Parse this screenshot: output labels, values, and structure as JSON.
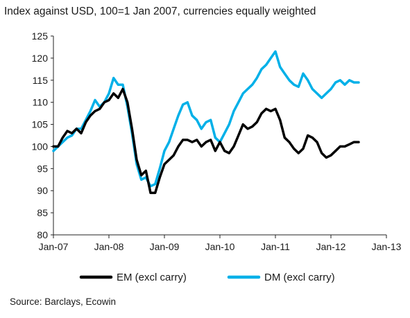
{
  "title": "Index against USD, 100=1 Jan 2007, currencies equally weighted",
  "source": "Source: Barclays, Ecowin",
  "chart_data": {
    "type": "line",
    "ylim": [
      80,
      125
    ],
    "yticks": [
      80,
      85,
      90,
      95,
      100,
      105,
      110,
      115,
      120,
      125
    ],
    "xlim": [
      0,
      72
    ],
    "xticks": [
      {
        "label": "Jan-07",
        "value": 0
      },
      {
        "label": "Jan-08",
        "value": 12
      },
      {
        "label": "Jan-09",
        "value": 24
      },
      {
        "label": "Jan-10",
        "value": 36
      },
      {
        "label": "Jan-11",
        "value": 48
      },
      {
        "label": "Jan-12",
        "value": 60
      },
      {
        "label": "Jan-13",
        "value": 72
      }
    ],
    "grid": false,
    "legend": "bottom",
    "series": [
      {
        "name": "EM (excl carry)",
        "color": "#000000",
        "points": [
          [
            0,
            100
          ],
          [
            1,
            100
          ],
          [
            2,
            102
          ],
          [
            3,
            103.5
          ],
          [
            4,
            103
          ],
          [
            5,
            104
          ],
          [
            6,
            103
          ],
          [
            7,
            105.5
          ],
          [
            8,
            107
          ],
          [
            9,
            108
          ],
          [
            10,
            108.5
          ],
          [
            11,
            110
          ],
          [
            12,
            110.5
          ],
          [
            13,
            112
          ],
          [
            14,
            111
          ],
          [
            15,
            113
          ],
          [
            16,
            110
          ],
          [
            17,
            104
          ],
          [
            18,
            97
          ],
          [
            19,
            93.5
          ],
          [
            20,
            94.5
          ],
          [
            21,
            89.5
          ],
          [
            22,
            89.5
          ],
          [
            23,
            93
          ],
          [
            24,
            96
          ],
          [
            25,
            97
          ],
          [
            26,
            98
          ],
          [
            27,
            100
          ],
          [
            28,
            101.5
          ],
          [
            29,
            101.5
          ],
          [
            30,
            101
          ],
          [
            31,
            101.5
          ],
          [
            32,
            100
          ],
          [
            33,
            101
          ],
          [
            34,
            101.5
          ],
          [
            35,
            99
          ],
          [
            36,
            101
          ],
          [
            37,
            99
          ],
          [
            38,
            98.5
          ],
          [
            39,
            100
          ],
          [
            40,
            102.5
          ],
          [
            41,
            105
          ],
          [
            42,
            104
          ],
          [
            43,
            104.5
          ],
          [
            44,
            105.5
          ],
          [
            45,
            107.5
          ],
          [
            46,
            108.5
          ],
          [
            47,
            108
          ],
          [
            48,
            108.5
          ],
          [
            49,
            106
          ],
          [
            50,
            102
          ],
          [
            51,
            101
          ],
          [
            52,
            99.5
          ],
          [
            53,
            98.5
          ],
          [
            54,
            99.5
          ],
          [
            55,
            102.5
          ],
          [
            56,
            102
          ],
          [
            57,
            101
          ],
          [
            58,
            98.5
          ],
          [
            59,
            97.5
          ],
          [
            60,
            98
          ],
          [
            61,
            99
          ],
          [
            62,
            100
          ],
          [
            63,
            100
          ],
          [
            64,
            100.5
          ],
          [
            65,
            101
          ],
          [
            66,
            101
          ]
        ]
      },
      {
        "name": "DM (excl carry)",
        "color": "#00B0E8",
        "points": [
          [
            0,
            99
          ],
          [
            1,
            100
          ],
          [
            2,
            101
          ],
          [
            3,
            102
          ],
          [
            4,
            102.5
          ],
          [
            5,
            104
          ],
          [
            6,
            104
          ],
          [
            7,
            106
          ],
          [
            8,
            108
          ],
          [
            9,
            110.5
          ],
          [
            10,
            109
          ],
          [
            11,
            110
          ],
          [
            12,
            112
          ],
          [
            13,
            115.5
          ],
          [
            14,
            114
          ],
          [
            15,
            114
          ],
          [
            16,
            109
          ],
          [
            17,
            103
          ],
          [
            18,
            96
          ],
          [
            19,
            92.5
          ],
          [
            20,
            93
          ],
          [
            21,
            91
          ],
          [
            22,
            91.5
          ],
          [
            23,
            95
          ],
          [
            24,
            99
          ],
          [
            25,
            101
          ],
          [
            26,
            104
          ],
          [
            27,
            107
          ],
          [
            28,
            109.5
          ],
          [
            29,
            110
          ],
          [
            30,
            107
          ],
          [
            31,
            106
          ],
          [
            32,
            104
          ],
          [
            33,
            105.5
          ],
          [
            34,
            106
          ],
          [
            35,
            102
          ],
          [
            36,
            101
          ],
          [
            37,
            103
          ],
          [
            38,
            105
          ],
          [
            39,
            108
          ],
          [
            40,
            110
          ],
          [
            41,
            112
          ],
          [
            42,
            113
          ],
          [
            43,
            114
          ],
          [
            44,
            115.5
          ],
          [
            45,
            117.5
          ],
          [
            46,
            118.5
          ],
          [
            47,
            120
          ],
          [
            48,
            121.5
          ],
          [
            49,
            118
          ],
          [
            50,
            116.5
          ],
          [
            51,
            115
          ],
          [
            52,
            114
          ],
          [
            53,
            113.5
          ],
          [
            54,
            116.5
          ],
          [
            55,
            115
          ],
          [
            56,
            113
          ],
          [
            57,
            112
          ],
          [
            58,
            111
          ],
          [
            59,
            112
          ],
          [
            60,
            113
          ],
          [
            61,
            114.5
          ],
          [
            62,
            115
          ],
          [
            63,
            114
          ],
          [
            64,
            115
          ],
          [
            65,
            114.5
          ],
          [
            66,
            114.5
          ]
        ]
      }
    ]
  }
}
